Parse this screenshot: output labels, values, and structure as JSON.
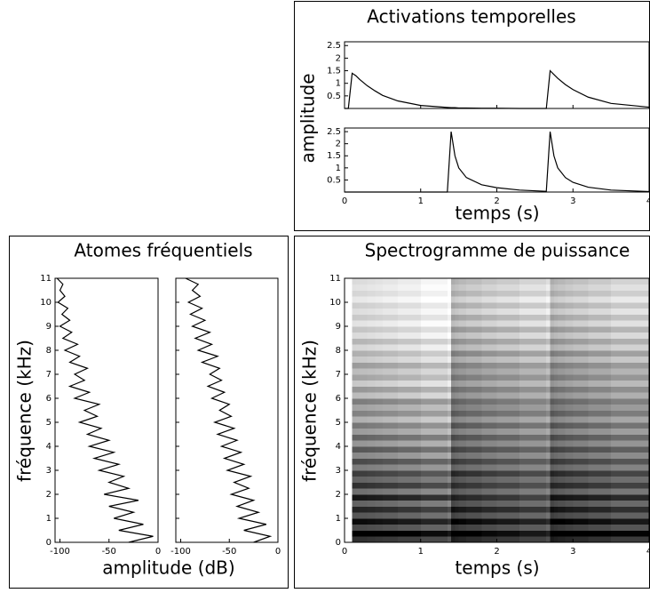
{
  "chart_data": [
    {
      "type": "line",
      "title": "Activations temporelles",
      "y_label": "amplitude",
      "x_label": "temps (s)",
      "xlim": [
        0,
        4
      ],
      "ylim": [
        0,
        2.65
      ],
      "xticks": [
        0,
        1,
        2,
        3,
        4
      ],
      "yticks": [
        0.5,
        1,
        1.5,
        2,
        2.5
      ],
      "x": [
        0,
        0.05,
        0.1,
        0.15,
        0.2,
        0.3,
        0.4,
        0.5,
        0.7,
        1.0,
        1.35,
        1.4,
        1.45,
        1.5,
        1.6,
        1.8,
        2.0,
        2.3,
        2.65,
        2.7,
        2.75,
        2.8,
        2.9,
        3.0,
        3.2,
        3.5,
        4.0
      ],
      "series": [
        {
          "color": "#000000",
          "values": [
            0,
            0,
            1.4,
            1.3,
            1.15,
            0.9,
            0.7,
            0.52,
            0.3,
            0.12,
            0.04,
            0.03,
            0.03,
            0.02,
            0.02,
            0.01,
            0.01,
            0,
            0,
            1.5,
            1.35,
            1.2,
            0.95,
            0.75,
            0.45,
            0.2,
            0.05
          ]
        },
        {
          "color": "#000000",
          "values": [
            0,
            0,
            0,
            0,
            0,
            0,
            0,
            0,
            0,
            0,
            0,
            2.5,
            1.5,
            1.0,
            0.6,
            0.3,
            0.18,
            0.08,
            0.03,
            2.5,
            1.5,
            1.0,
            0.6,
            0.4,
            0.2,
            0.08,
            0.02
          ]
        }
      ]
    },
    {
      "type": "profile",
      "title": "Atomes fréquentiels",
      "y_label": "fréquence (kHz)",
      "x_label": "amplitude (dB)",
      "xlim": [
        -105,
        0
      ],
      "ylim": [
        0,
        11
      ],
      "xticks": [
        -100,
        -50,
        0
      ],
      "yticks": [
        0,
        1,
        2,
        3,
        4,
        5,
        6,
        7,
        8,
        9,
        10,
        11
      ],
      "y": [
        0,
        0.25,
        0.5,
        0.75,
        1,
        1.25,
        1.5,
        1.75,
        2,
        2.25,
        2.5,
        2.75,
        3,
        3.25,
        3.5,
        3.75,
        4,
        4.25,
        4.5,
        4.75,
        5,
        5.25,
        5.5,
        5.75,
        6,
        6.25,
        6.5,
        6.75,
        7,
        7.25,
        7.5,
        7.75,
        8,
        8.25,
        8.5,
        8.75,
        9,
        9.25,
        9.5,
        9.75,
        10,
        10.25,
        10.5,
        10.75,
        11
      ],
      "series": [
        {
          "color": "#000000",
          "values": [
            -30,
            -5,
            -40,
            -15,
            -45,
            -25,
            -50,
            -20,
            -55,
            -30,
            -50,
            -35,
            -60,
            -40,
            -65,
            -45,
            -70,
            -50,
            -72,
            -58,
            -80,
            -62,
            -75,
            -60,
            -85,
            -70,
            -90,
            -75,
            -85,
            -72,
            -90,
            -80,
            -95,
            -82,
            -97,
            -88,
            -100,
            -90,
            -98,
            -92,
            -102,
            -95,
            -100,
            -97,
            -103
          ]
        },
        {
          "color": "#000000",
          "values": [
            -25,
            -8,
            -35,
            -12,
            -40,
            -20,
            -42,
            -25,
            -48,
            -30,
            -45,
            -28,
            -52,
            -35,
            -55,
            -38,
            -58,
            -42,
            -62,
            -45,
            -65,
            -48,
            -60,
            -50,
            -68,
            -55,
            -72,
            -58,
            -70,
            -60,
            -78,
            -62,
            -82,
            -68,
            -85,
            -70,
            -88,
            -75,
            -90,
            -78,
            -92,
            -80,
            -88,
            -82,
            -95
          ]
        }
      ]
    },
    {
      "type": "heatmap",
      "title": "Spectrogramme de puissance",
      "y_label": "fréquence (kHz)",
      "x_label": "temps (s)",
      "xlim": [
        0,
        4
      ],
      "ylim": [
        0,
        11
      ],
      "xticks": [
        0,
        1,
        2,
        3,
        4
      ],
      "yticks": [
        0,
        1,
        2,
        3,
        4,
        5,
        6,
        7,
        8,
        9,
        10,
        11
      ]
    }
  ]
}
